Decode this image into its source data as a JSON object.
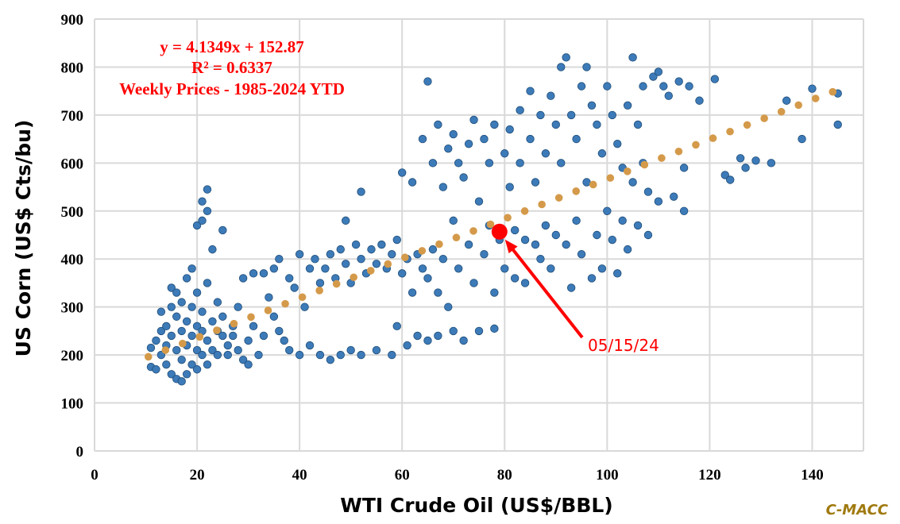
{
  "chart_data": {
    "type": "scatter",
    "title": "",
    "xlabel": "WTI Crude Oil (US$/BBL)",
    "ylabel": "US Corn (US$ Cts/bu)",
    "xlim": [
      0,
      150
    ],
    "ylim": [
      0,
      900
    ],
    "xticks": [
      "0",
      "20",
      "40",
      "60",
      "80",
      "100",
      "120",
      "140"
    ],
    "yticks": [
      "0",
      "100",
      "200",
      "300",
      "400",
      "500",
      "600",
      "700",
      "800",
      "900"
    ],
    "grid": true,
    "colors": {
      "points": "#3d7ab8",
      "point_edge": "#1f4e79",
      "trend": "#d49a4a",
      "highlight": "#ff0000"
    },
    "annotation": {
      "equation": "y = 4.1349x + 152.87",
      "r_squared": "R² = 0.6337",
      "subtitle": "Weekly Prices - 1985-2024 YTD"
    },
    "trendline": {
      "slope": 4.1349,
      "intercept": 152.87,
      "x_range": [
        10.5,
        144
      ]
    },
    "highlight_point": {
      "label": "05/15/24",
      "x": 79,
      "y": 457
    },
    "series": [
      {
        "name": "Weekly Prices",
        "points": [
          [
            11,
            215
          ],
          [
            11,
            175
          ],
          [
            12,
            170
          ],
          [
            12,
            230
          ],
          [
            13,
            250
          ],
          [
            13,
            200
          ],
          [
            13,
            290
          ],
          [
            14,
            180
          ],
          [
            14,
            220
          ],
          [
            14,
            260
          ],
          [
            15,
            340
          ],
          [
            15,
            160
          ],
          [
            15,
            300
          ],
          [
            15,
            240
          ],
          [
            16,
            150
          ],
          [
            16,
            210
          ],
          [
            16,
            280
          ],
          [
            16,
            330
          ],
          [
            17,
            145
          ],
          [
            17,
            190
          ],
          [
            17,
            250
          ],
          [
            17,
            310
          ],
          [
            18,
            160
          ],
          [
            18,
            220
          ],
          [
            18,
            270
          ],
          [
            18,
            360
          ],
          [
            19,
            180
          ],
          [
            19,
            240
          ],
          [
            19,
            300
          ],
          [
            19,
            380
          ],
          [
            20,
            170
          ],
          [
            20,
            210
          ],
          [
            20,
            260
          ],
          [
            20,
            330
          ],
          [
            20,
            470
          ],
          [
            21,
            200
          ],
          [
            21,
            250
          ],
          [
            21,
            290
          ],
          [
            21,
            520
          ],
          [
            21,
            480
          ],
          [
            22,
            545
          ],
          [
            22,
            500
          ],
          [
            22,
            180
          ],
          [
            22,
            230
          ],
          [
            22,
            350
          ],
          [
            23,
            210
          ],
          [
            23,
            270
          ],
          [
            23,
            420
          ],
          [
            24,
            250
          ],
          [
            24,
            310
          ],
          [
            24,
            200
          ],
          [
            25,
            460
          ],
          [
            25,
            240
          ],
          [
            25,
            280
          ],
          [
            26,
            220
          ],
          [
            26,
            200
          ],
          [
            27,
            260
          ],
          [
            27,
            240
          ],
          [
            28,
            300
          ],
          [
            28,
            210
          ],
          [
            29,
            360
          ],
          [
            29,
            190
          ],
          [
            30,
            230
          ],
          [
            30,
            180
          ],
          [
            31,
            370
          ],
          [
            31,
            260
          ],
          [
            32,
            200
          ],
          [
            33,
            370
          ],
          [
            33,
            240
          ],
          [
            34,
            320
          ],
          [
            35,
            280
          ],
          [
            35,
            380
          ],
          [
            36,
            250
          ],
          [
            36,
            400
          ],
          [
            37,
            230
          ],
          [
            38,
            360
          ],
          [
            38,
            210
          ],
          [
            39,
            340
          ],
          [
            40,
            410
          ],
          [
            40,
            200
          ],
          [
            41,
            300
          ],
          [
            42,
            380
          ],
          [
            42,
            220
          ],
          [
            43,
            400
          ],
          [
            44,
            350
          ],
          [
            44,
            200
          ],
          [
            45,
            380
          ],
          [
            46,
            410
          ],
          [
            46,
            190
          ],
          [
            47,
            360
          ],
          [
            48,
            420
          ],
          [
            48,
            200
          ],
          [
            49,
            390
          ],
          [
            49,
            480
          ],
          [
            50,
            350
          ],
          [
            50,
            210
          ],
          [
            51,
            430
          ],
          [
            52,
            540
          ],
          [
            52,
            400
          ],
          [
            52,
            200
          ],
          [
            53,
            370
          ],
          [
            54,
            420
          ],
          [
            55,
            390
          ],
          [
            55,
            210
          ],
          [
            56,
            430
          ],
          [
            57,
            380
          ],
          [
            58,
            410
          ],
          [
            58,
            200
          ],
          [
            59,
            440
          ],
          [
            59,
            260
          ],
          [
            60,
            370
          ],
          [
            60,
            580
          ],
          [
            61,
            400
          ],
          [
            61,
            220
          ],
          [
            62,
            560
          ],
          [
            62,
            330
          ],
          [
            63,
            410
          ],
          [
            63,
            240
          ],
          [
            64,
            650
          ],
          [
            64,
            380
          ],
          [
            65,
            770
          ],
          [
            65,
            360
          ],
          [
            65,
            230
          ],
          [
            66,
            600
          ],
          [
            66,
            420
          ],
          [
            67,
            680
          ],
          [
            67,
            330
          ],
          [
            67,
            240
          ],
          [
            68,
            550
          ],
          [
            68,
            400
          ],
          [
            69,
            630
          ],
          [
            69,
            300
          ],
          [
            70,
            660
          ],
          [
            70,
            480
          ],
          [
            70,
            250
          ],
          [
            71,
            600
          ],
          [
            71,
            380
          ],
          [
            72,
            570
          ],
          [
            72,
            230
          ],
          [
            73,
            640
          ],
          [
            73,
            430
          ],
          [
            74,
            690
          ],
          [
            74,
            350
          ],
          [
            75,
            520
          ],
          [
            75,
            250
          ],
          [
            76,
            650
          ],
          [
            76,
            410
          ],
          [
            77,
            600
          ],
          [
            77,
            470
          ],
          [
            78,
            680
          ],
          [
            78,
            330
          ],
          [
            78,
            255
          ],
          [
            79,
            440
          ],
          [
            80,
            620
          ],
          [
            80,
            380
          ],
          [
            81,
            670
          ],
          [
            81,
            550
          ],
          [
            82,
            460
          ],
          [
            82,
            360
          ],
          [
            83,
            710
          ],
          [
            83,
            600
          ],
          [
            84,
            440
          ],
          [
            84,
            350
          ],
          [
            85,
            750
          ],
          [
            85,
            650
          ],
          [
            86,
            430
          ],
          [
            86,
            560
          ],
          [
            87,
            700
          ],
          [
            87,
            400
          ],
          [
            88,
            620
          ],
          [
            88,
            470
          ],
          [
            89,
            740
          ],
          [
            89,
            380
          ],
          [
            90,
            680
          ],
          [
            90,
            450
          ],
          [
            91,
            800
          ],
          [
            91,
            600
          ],
          [
            92,
            820
          ],
          [
            92,
            430
          ],
          [
            93,
            700
          ],
          [
            93,
            340
          ],
          [
            94,
            650
          ],
          [
            94,
            480
          ],
          [
            95,
            760
          ],
          [
            95,
            410
          ],
          [
            96,
            800
          ],
          [
            96,
            560
          ],
          [
            97,
            720
          ],
          [
            97,
            360
          ],
          [
            98,
            680
          ],
          [
            98,
            450
          ],
          [
            99,
            620
          ],
          [
            99,
            380
          ],
          [
            100,
            760
          ],
          [
            100,
            500
          ],
          [
            101,
            700
          ],
          [
            101,
            440
          ],
          [
            102,
            640
          ],
          [
            102,
            370
          ],
          [
            103,
            590
          ],
          [
            103,
            480
          ],
          [
            104,
            720
          ],
          [
            104,
            420
          ],
          [
            105,
            820
          ],
          [
            105,
            560
          ],
          [
            106,
            680
          ],
          [
            106,
            470
          ],
          [
            107,
            760
          ],
          [
            107,
            600
          ],
          [
            108,
            540
          ],
          [
            108,
            450
          ],
          [
            109,
            780
          ],
          [
            110,
            520
          ],
          [
            110,
            790
          ],
          [
            111,
            760
          ],
          [
            112,
            740
          ],
          [
            113,
            530
          ],
          [
            114,
            770
          ],
          [
            115,
            500
          ],
          [
            115,
            590
          ],
          [
            116,
            760
          ],
          [
            118,
            730
          ],
          [
            121,
            775
          ],
          [
            123,
            575
          ],
          [
            124,
            565
          ],
          [
            126,
            610
          ],
          [
            127,
            590
          ],
          [
            129,
            605
          ],
          [
            132,
            600
          ],
          [
            135,
            730
          ],
          [
            138,
            650
          ],
          [
            140,
            755
          ],
          [
            145,
            745
          ],
          [
            145,
            680
          ]
        ]
      }
    ]
  },
  "branding": "C-MACC"
}
